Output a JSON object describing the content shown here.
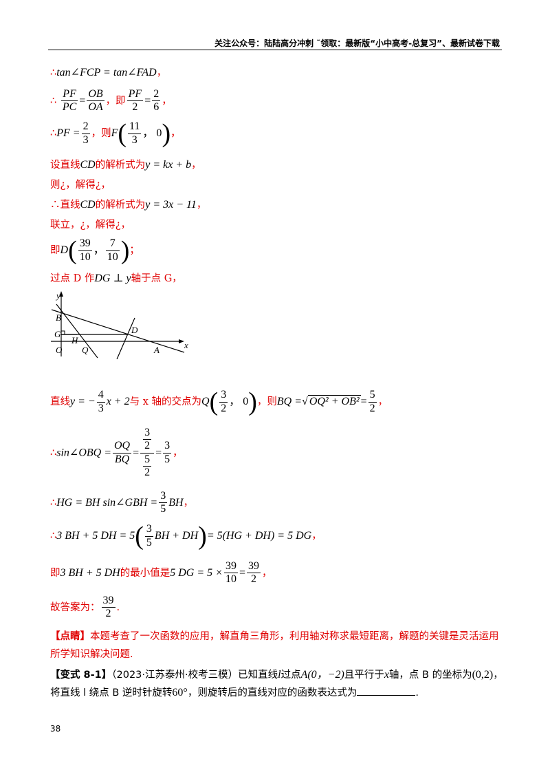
{
  "header": {
    "text": "关注公众号：陆陆高分冲刺  ˜领取：最新版“小中高考-总复习”、最新试卷下载"
  },
  "lines": {
    "l1_therefore": "∴",
    "l1_math": "tan∠FCP = tan∠FAD",
    "l1_end": "，",
    "l2_therefore": "∴",
    "l2_f1_num": "PF",
    "l2_f1_den": "PC",
    "l2_eq": "=",
    "l2_f2_num": "OB",
    "l2_f2_den": "OA",
    "l2_mid": "，即",
    "l2_f3_num": "PF",
    "l2_f3_den": "2",
    "l2_f4_num": "2",
    "l2_f4_den": "6",
    "l2_end": "，",
    "l3_therefore": "∴",
    "l3_lhs": "PF =",
    "l3_f_num": "2",
    "l3_f_den": "3",
    "l3_mid": "，则",
    "l3_point": "F",
    "l3_px_num": "11",
    "l3_px_den": "3",
    "l3_py": "，  0",
    "l3_end": "，",
    "l4_text": "设直线",
    "l4_cd": "CD",
    "l4_text2": "的解析式为",
    "l4_math": "y = kx + b",
    "l4_end": "，",
    "l5_text": "则¿，解得¿，",
    "l6_therefore": "∴",
    "l6_text": "直线",
    "l6_cd": "CD",
    "l6_text2": "的解析式为",
    "l6_math": "y = 3x − 11",
    "l6_end": "，",
    "l7_text": "联立，¿，解得¿，",
    "l8_text": "即",
    "l8_point": "D",
    "l8_x_num": "39",
    "l8_x_den": "10",
    "l8_y_num": "7",
    "l8_y_den": "10",
    "l8_comma": "，",
    "l8_end": "；",
    "l9_text": "过点 D 作",
    "l9_math": "DG ⊥ y",
    "l9_text2": "轴于点 G，",
    "l10_text": "直线",
    "l10_math1": "y = −",
    "l10_f_num": "4",
    "l10_f_den": "3",
    "l10_math2": "x + 2",
    "l10_text2": "与 x 轴的交点为",
    "l10_point": "Q",
    "l10_qx_num": "3",
    "l10_qx_den": "2",
    "l10_qy": "，  0",
    "l10_text3": "，则",
    "l10_math3": "BQ =",
    "l10_sqrt": "OQ² + OB²",
    "l10_eq": "=",
    "l10_r_num": "5",
    "l10_r_den": "2",
    "l10_end": "，",
    "l11_therefore": "∴",
    "l11_math": "sin∠OBQ =",
    "l11_f1_num": "OQ",
    "l11_f1_den": "BQ",
    "l11_eq": "=",
    "l11_n_num": "3",
    "l11_n_den": "2",
    "l11_d_num": "5",
    "l11_d_den": "2",
    "l11_r_num": "3",
    "l11_r_den": "5",
    "l11_end": "，",
    "l12_therefore": "∴",
    "l12_math": "HG = BH sin∠GBH =",
    "l12_f_num": "3",
    "l12_f_den": "5",
    "l12_math2": "BH",
    "l12_end": "，",
    "l13_therefore": "∴",
    "l13_math1": "3 BH + 5 DH = 5",
    "l13_f_num": "3",
    "l13_f_den": "5",
    "l13_math2": "BH + DH",
    "l13_math3": "= 5(HG + DH) = 5 DG",
    "l13_end": "，",
    "l14_text": "即",
    "l14_math1": "3 BH + 5 DH",
    "l14_text2": "的最小值是",
    "l14_math2": "5 DG = 5 ×",
    "l14_f1_num": "39",
    "l14_f1_den": "10",
    "l14_eq": "=",
    "l14_f2_num": "39",
    "l14_f2_den": "2",
    "l14_end": "，",
    "l15_text": "故答案为：",
    "l15_f_num": "39",
    "l15_f_den": "2",
    "l15_end": "."
  },
  "figure": {
    "labels": {
      "y": "y",
      "x": "x",
      "B": "B",
      "G": "G",
      "H": "H",
      "O": "O",
      "Q": "Q",
      "D": "D",
      "A": "A"
    }
  },
  "note": {
    "tag": "【点睛】",
    "text": "本题考查了一次函数的应用，解直角三角形，利用轴对称求最短距离，解题的关键是灵活运用所学知识解决问题."
  },
  "question": {
    "tag": "【变式 8-1】",
    "source": "（2023·江苏泰州·校考三模）",
    "text1": "已知直线",
    "l": "l",
    "text2": "过点",
    "pointA": "A(0，−2)",
    "text3": "且平行于",
    "x": "x",
    "text4": "轴，点 B 的坐标为",
    "pointB": "(0,2)",
    "text5": "，将直线 l 绕点 B 逆时针旋转",
    "angle": "60°",
    "text6": "，则旋转后的直线对应的函数表达式为",
    "end": "."
  },
  "page_number": "38"
}
